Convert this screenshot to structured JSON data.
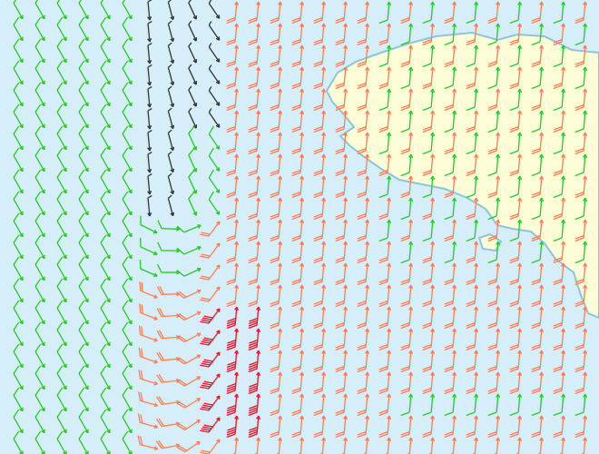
{
  "map": {
    "water_color": "#d6eefa",
    "land_color": "#fdfdd8",
    "coast_color": "#8cc6da"
  },
  "wind_barbs": {
    "speed_classes": [
      {
        "class": "calm",
        "color": "#333333",
        "barbs": 1
      },
      {
        "class": "light",
        "color": "#22cc22",
        "barbs": 1
      },
      {
        "class": "moderate",
        "color": "#ff7f50",
        "barbs": 2
      },
      {
        "class": "strong",
        "color": "#ee1122",
        "barbs": 4
      }
    ]
  }
}
